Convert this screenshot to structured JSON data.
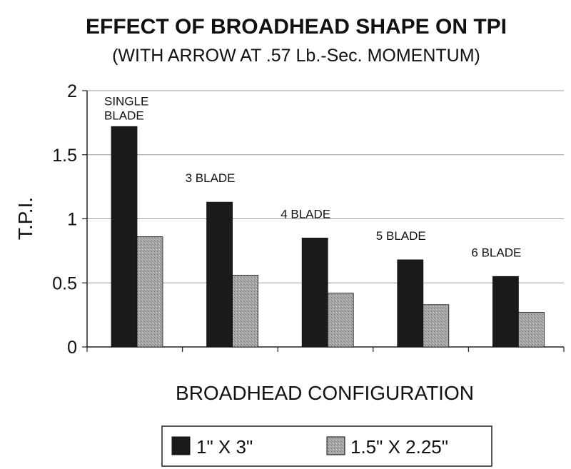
{
  "chart_data": {
    "type": "bar",
    "title": "EFFECT OF BROADHEAD SHAPE ON TPI",
    "subtitle": "(WITH ARROW AT .57 Lb.-Sec. MOMENTUM)",
    "xlabel": "BROADHEAD CONFIGURATION",
    "ylabel": "T.P.I.",
    "ylim": [
      0,
      2
    ],
    "yticks": [
      "0",
      "0.5",
      "1",
      "1.5",
      "2"
    ],
    "yticks_values": [
      0,
      0.5,
      1,
      1.5,
      2
    ],
    "grid": true,
    "legend_position": "bottom",
    "categories": [
      "SINGLE BLADE",
      "3 BLADE",
      "4 BLADE",
      "5 BLADE",
      "6 BLADE"
    ],
    "category_labels": [
      [
        "SINGLE",
        "BLADE"
      ],
      [
        "3 BLADE"
      ],
      [
        "4 BLADE"
      ],
      [
        "5 BLADE"
      ],
      [
        "6 BLADE"
      ]
    ],
    "series": [
      {
        "name": "1\" X 3\"",
        "color": "#1a1a1a",
        "values": [
          1.72,
          1.13,
          0.85,
          0.68,
          0.55
        ]
      },
      {
        "name": "1.5\" X 2.25\"",
        "color": "#a6a6a6",
        "values": [
          0.86,
          0.56,
          0.42,
          0.33,
          0.27
        ]
      }
    ]
  }
}
